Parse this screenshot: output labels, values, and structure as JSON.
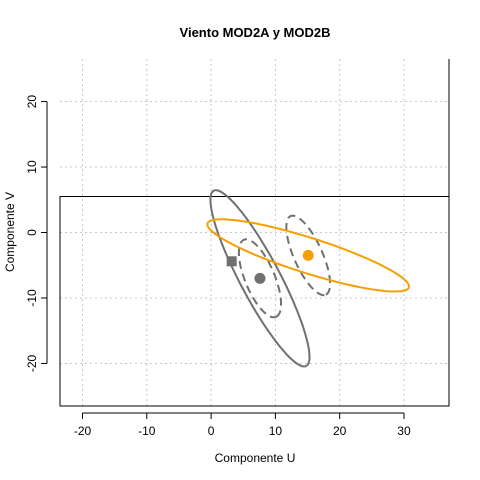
{
  "chart_data": {
    "type": "scatter",
    "title": "Viento MOD2A y MOD2B",
    "xlabel": "Componente U",
    "ylabel": "Componente V",
    "xlim": [
      -23.5,
      37
    ],
    "ylim": [
      -26.5,
      26.5
    ],
    "xticks": [
      -20,
      -10,
      0,
      10,
      20,
      30
    ],
    "yticks": [
      -20,
      -10,
      0,
      10,
      20
    ],
    "grid": true,
    "colors": {
      "gray": "#707070",
      "orange": "#f5a000",
      "grid": "#c8c8c8",
      "axis": "#000000"
    },
    "points": [
      {
        "marker": "square",
        "color": "#707070",
        "x": 3.2,
        "y": -4.4
      },
      {
        "marker": "circle",
        "color": "#707070",
        "x": 7.6,
        "y": -7.0
      },
      {
        "marker": "circle",
        "color": "#f5a000",
        "x": 15.1,
        "y": -3.5
      }
    ],
    "ellipses": [
      {
        "color": "#707070",
        "dash": false,
        "cx": 7.6,
        "cy": -7.0,
        "angle_deg": -61.7,
        "a": 15.2,
        "b": 3.1
      },
      {
        "color": "#707070",
        "dash": true,
        "cx": 7.6,
        "cy": -7.0,
        "angle_deg": -67.0,
        "a": 6.4,
        "b": 2.3
      },
      {
        "color": "#707070",
        "dash": true,
        "cx": 15.1,
        "cy": -3.5,
        "angle_deg": -65.4,
        "a": 6.6,
        "b": 2.2
      },
      {
        "color": "#f5a000",
        "dash": false,
        "cx": 15.1,
        "cy": -3.5,
        "angle_deg": -17.3,
        "a": 16.4,
        "b": 2.7
      }
    ]
  }
}
